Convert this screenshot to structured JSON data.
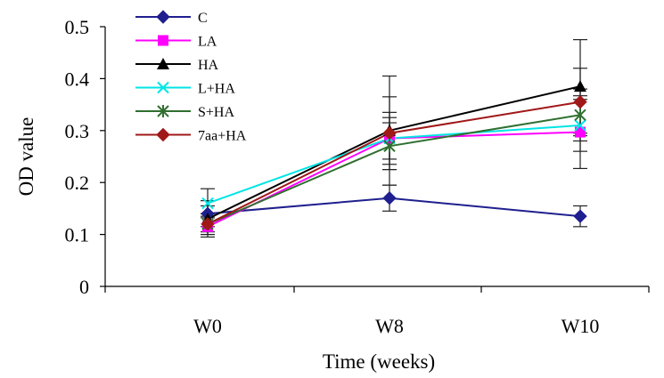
{
  "chart_data": {
    "type": "line",
    "categories": [
      "W0",
      "W8",
      "W10"
    ],
    "xlabel": "Time (weeks)",
    "ylabel": "OD value",
    "ylim": [
      0,
      0.5
    ],
    "yticks": [
      "0",
      "0.1",
      "0.2",
      "0.3",
      "0.4",
      "0.5"
    ],
    "ytick_values": [
      0,
      0.1,
      0.2,
      0.3,
      0.4,
      0.5
    ],
    "grid": false,
    "legend_position": "top-left",
    "series": [
      {
        "name": "C",
        "color": "#1f1f8f",
        "marker": "diamond",
        "values": [
          0.14,
          0.17,
          0.135
        ],
        "errors": [
          0.025,
          0.025,
          0.02
        ]
      },
      {
        "name": "LA",
        "color": "#ff00ff",
        "marker": "square",
        "values": [
          0.115,
          0.285,
          0.297
        ],
        "errors": [
          0.02,
          0.04,
          0.07
        ]
      },
      {
        "name": "HA",
        "color": "#000000",
        "marker": "triangle",
        "values": [
          0.13,
          0.3,
          0.385
        ],
        "errors": [
          0.025,
          0.105,
          0.09
        ]
      },
      {
        "name": "L+HA",
        "color": "#00e5e5",
        "marker": "x",
        "values": [
          0.16,
          0.285,
          0.31
        ],
        "errors": [
          0.028,
          0.05,
          0.05
        ]
      },
      {
        "name": "S+HA",
        "color": "#2f6f2f",
        "marker": "star",
        "values": [
          0.12,
          0.27,
          0.33
        ],
        "errors": [
          0.02,
          0.045,
          0.05
        ]
      },
      {
        "name": "7aa+HA",
        "color": "#a01818",
        "marker": "diamond",
        "values": [
          0.12,
          0.295,
          0.355
        ],
        "errors": [
          0.02,
          0.07,
          0.065
        ]
      }
    ]
  }
}
